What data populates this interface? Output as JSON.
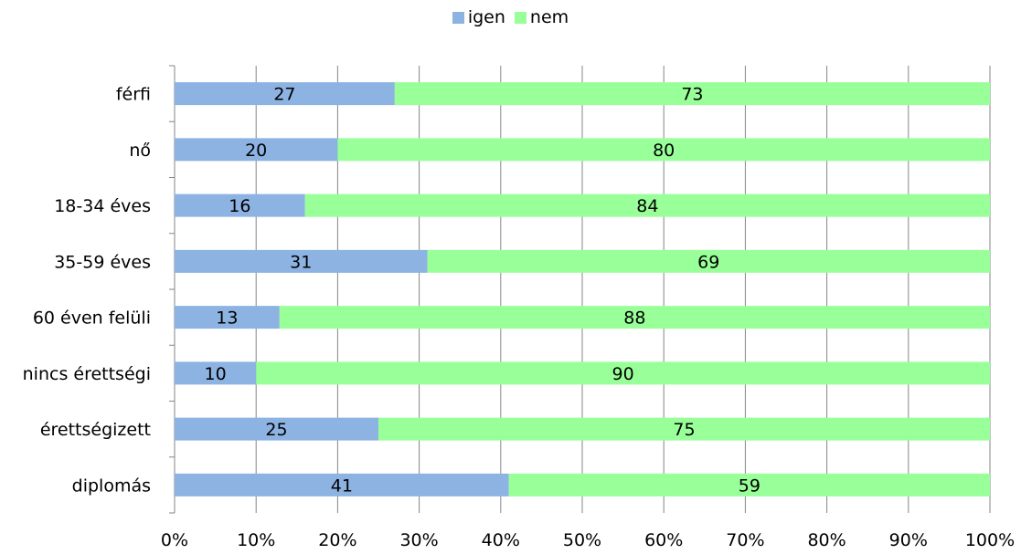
{
  "chart_data": {
    "type": "bar",
    "orientation": "horizontal",
    "stacked": "percent",
    "categories": [
      "férfi",
      "nő",
      "18-34 éves",
      "35-59 éves",
      "60 éven felüli",
      "nincs érettségi",
      "érettségizett",
      "diplomás"
    ],
    "series": [
      {
        "name": "igen",
        "values": [
          27,
          20,
          16,
          31,
          13,
          10,
          25,
          41
        ],
        "color": "#8db3e2"
      },
      {
        "name": "nem",
        "values": [
          73,
          80,
          84,
          69,
          88,
          90,
          75,
          59
        ],
        "color": "#99ff99"
      }
    ],
    "x_tick_labels": [
      "0%",
      "10%",
      "20%",
      "30%",
      "40%",
      "50%",
      "60%",
      "70%",
      "80%",
      "90%",
      "100%"
    ],
    "xlim": [
      0,
      100
    ],
    "grid": true,
    "legend_position": "top"
  }
}
